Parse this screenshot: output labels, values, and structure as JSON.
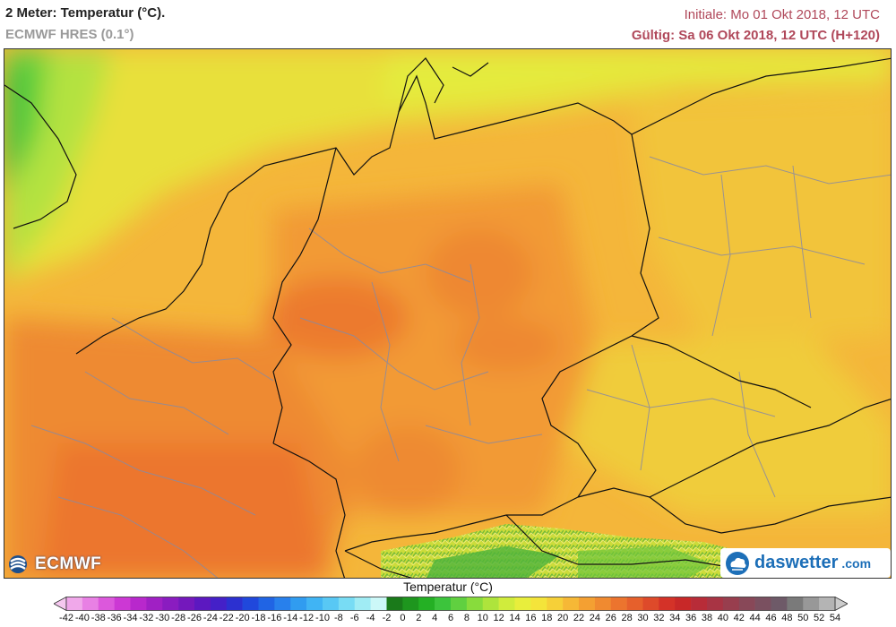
{
  "header": {
    "title": "2 Meter: Temperatur (°C).",
    "model": "ECMWF HRES (0.1°)",
    "initial": "Initiale: Mo 01 Okt 2018, 12 UTC",
    "valid": "Gültig: Sa 06 Okt 2018, 12 UTC (H+120)"
  },
  "logos": {
    "ecmwf": "ECMWF",
    "daswetter_brand": "daswetter",
    "daswetter_tld": ".com"
  },
  "legend": {
    "title": "Temperatur (°C)",
    "ticks": [
      "-42",
      "-40",
      "-38",
      "-36",
      "-34",
      "-32",
      "-30",
      "-28",
      "-26",
      "-24",
      "-22",
      "-20",
      "-18",
      "-16",
      "-14",
      "-12",
      "-10",
      "-8",
      "-6",
      "-4",
      "-2",
      "0",
      "2",
      "4",
      "6",
      "8",
      "10",
      "12",
      "14",
      "16",
      "18",
      "20",
      "22",
      "24",
      "26",
      "28",
      "30",
      "32",
      "34",
      "36",
      "38",
      "40",
      "42",
      "44",
      "46",
      "48",
      "50",
      "52",
      "54"
    ],
    "colors": [
      "#f6c8f0",
      "#f0a8ea",
      "#e880e4",
      "#dc58dc",
      "#cc38d4",
      "#b828cc",
      "#a020c4",
      "#8a1cc0",
      "#7418bc",
      "#5c18c0",
      "#4420c8",
      "#2c30d0",
      "#2048dc",
      "#2064e4",
      "#2880ec",
      "#309cf0",
      "#40b4f4",
      "#58c8f4",
      "#78dcf4",
      "#a0ecf4",
      "#ccf8f8",
      "#1a7a1a",
      "#1e961e",
      "#24b024",
      "#3cc43c",
      "#60d040",
      "#88dc3c",
      "#aee43c",
      "#d0ec3c",
      "#e8ee3c",
      "#f4e43a",
      "#f6d038",
      "#f6b836",
      "#f4a032",
      "#f08a30",
      "#ec742e",
      "#e6602c",
      "#de4a2a",
      "#d43228",
      "#c82828",
      "#b82c38",
      "#a83444",
      "#983e4e",
      "#884858",
      "#7a5060",
      "#6e5a68",
      "#7a7a7a",
      "#989898",
      "#b4b4b4",
      "#cccccc"
    ]
  }
}
